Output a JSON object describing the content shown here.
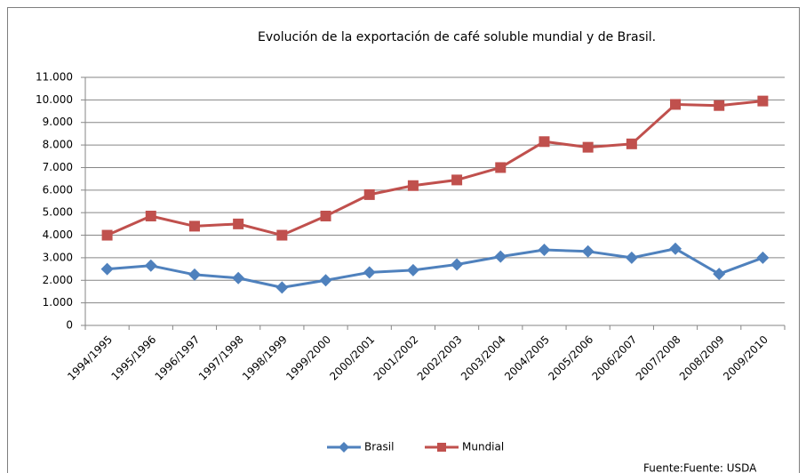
{
  "chart_data": {
    "type": "line",
    "title": "Evolución de la exportación de café soluble mundial y de Brasil.",
    "source": "Fuente:Fuente: USDA",
    "categories": [
      "1994/1995",
      "1995/1996",
      "1996/1997",
      "1997/1998",
      "1998/1999",
      "1999/2000",
      "2000/2001",
      "2001/2002",
      "2002/2003",
      "2003/2004",
      "2004/2005",
      "2005/2006",
      "2006/2007",
      "2007/2008",
      "2008/2009",
      "2009/2010"
    ],
    "series": [
      {
        "name": "Brasil",
        "color": "#4f81bd",
        "marker": "diamond",
        "values": [
          2500,
          2650,
          2250,
          2100,
          1680,
          2000,
          2350,
          2450,
          2700,
          3050,
          3350,
          3280,
          3000,
          3400,
          2280,
          3000
        ]
      },
      {
        "name": "Mundial",
        "color": "#c0504d",
        "marker": "square",
        "values": [
          4000,
          4850,
          4400,
          4500,
          4000,
          4850,
          5800,
          6200,
          6450,
          7000,
          8150,
          7900,
          8050,
          9800,
          9750,
          9950
        ]
      }
    ],
    "ylim": [
      0,
      11000
    ],
    "yticks": [
      0,
      {
        "value": 1000,
        "label": "1.000"
      },
      {
        "value": 2000,
        "label": "2.000"
      },
      {
        "value": 3000,
        "label": "3.000"
      },
      {
        "value": 4000,
        "label": "4.000"
      },
      {
        "value": 5000,
        "label": "5.000"
      },
      {
        "value": 6000,
        "label": "6.000"
      },
      {
        "value": 7000,
        "label": "7.000"
      },
      {
        "value": 8000,
        "label": "8.000"
      },
      {
        "value": 9000,
        "label": "9.000"
      },
      {
        "value": 10000,
        "label": "10.000"
      },
      {
        "value": 11000,
        "label": "11.000"
      }
    ],
    "grid": true,
    "legend": "bottom"
  }
}
